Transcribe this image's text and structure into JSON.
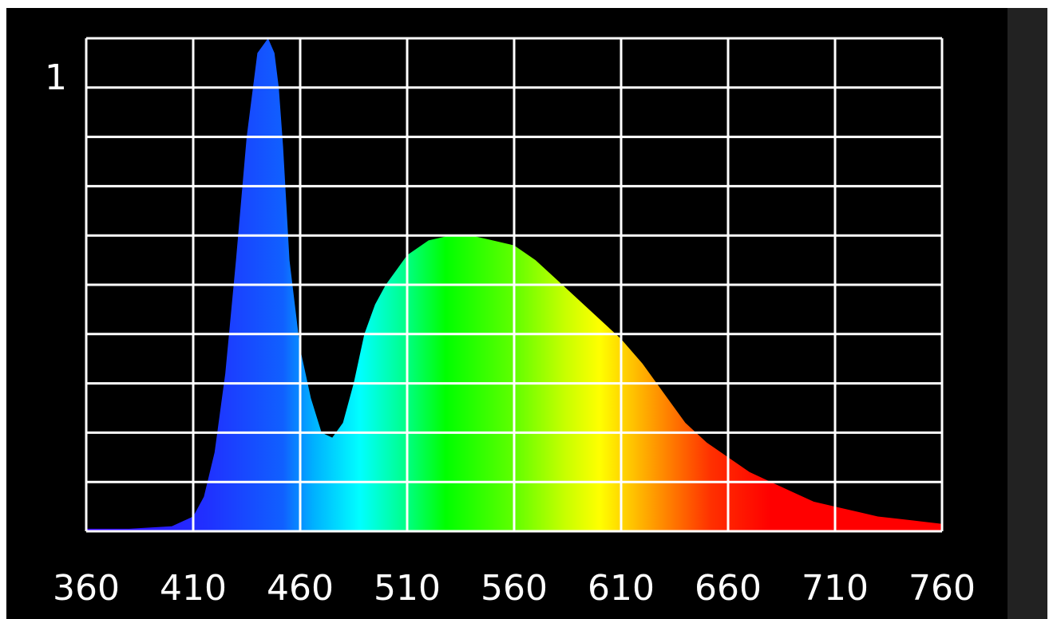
{
  "chart_data": {
    "type": "area",
    "title": "",
    "xlabel": "",
    "ylabel": "",
    "xlim": [
      360,
      760
    ],
    "ylim": [
      0,
      1
    ],
    "y_max_label": "1",
    "x_ticks": [
      360,
      410,
      460,
      510,
      560,
      610,
      660,
      710,
      760
    ],
    "x_tick_labels": [
      "360",
      "410",
      "460",
      "510",
      "560",
      "610",
      "660",
      "710",
      "760"
    ],
    "grid": true,
    "grid_y_divisions": 10,
    "fill": "visible-spectrum gradient",
    "series": [
      {
        "x": [
          360,
          380,
          400,
          410,
          415,
          420,
          425,
          430,
          435,
          440,
          445,
          448,
          450,
          452,
          455,
          460,
          465,
          470,
          475,
          480,
          485,
          490,
          495,
          500,
          505,
          510,
          520,
          530,
          540,
          550,
          560,
          570,
          580,
          590,
          600,
          610,
          620,
          630,
          640,
          650,
          660,
          670,
          680,
          690,
          700,
          710,
          720,
          730,
          740,
          750,
          760
        ],
        "y": [
          0.005,
          0.005,
          0.01,
          0.03,
          0.07,
          0.16,
          0.32,
          0.55,
          0.8,
          0.97,
          1.0,
          0.97,
          0.9,
          0.78,
          0.55,
          0.37,
          0.27,
          0.2,
          0.19,
          0.22,
          0.3,
          0.4,
          0.46,
          0.5,
          0.53,
          0.56,
          0.59,
          0.6,
          0.6,
          0.59,
          0.58,
          0.55,
          0.51,
          0.47,
          0.43,
          0.39,
          0.34,
          0.28,
          0.22,
          0.18,
          0.15,
          0.12,
          0.1,
          0.08,
          0.06,
          0.05,
          0.04,
          0.03,
          0.025,
          0.02,
          0.015
        ]
      }
    ]
  }
}
